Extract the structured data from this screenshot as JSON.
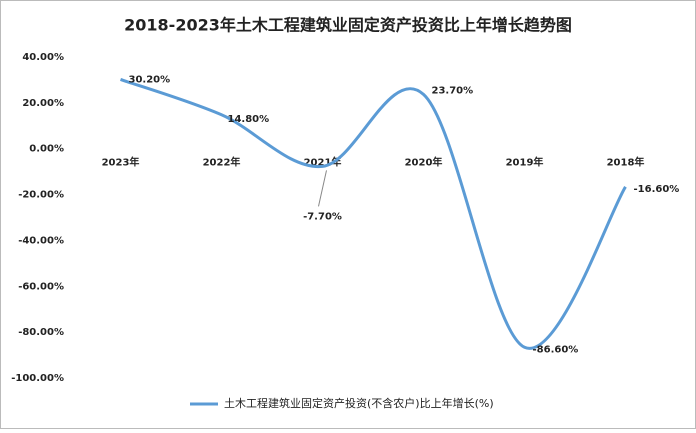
{
  "chart_data": {
    "type": "line",
    "title": "2018-2023年土木工程建筑业固定资产投资比上年增长趋势图",
    "categories": [
      "2023年",
      "2022年",
      "2021年",
      "2020年",
      "2019年",
      "2018年"
    ],
    "series": [
      {
        "name": "土木工程建筑业固定资产投资(不含农户)比上年增长(%)",
        "color": "#5b9bd5",
        "values": [
          30.2,
          14.8,
          -7.7,
          23.7,
          -86.6,
          -16.6
        ],
        "value_labels": [
          "30.20%",
          "14.80%",
          "-7.70%",
          "23.70%",
          "-86.60%",
          "-16.60%"
        ]
      }
    ],
    "ylim": [
      -100,
      40
    ],
    "yticks": [
      {
        "value": -100,
        "label": "-100.00%"
      },
      {
        "value": -80,
        "label": "-80.00%"
      },
      {
        "value": -60,
        "label": "-60.00%"
      },
      {
        "value": -40,
        "label": "-40.00%"
      },
      {
        "value": -20,
        "label": "-20.00%"
      },
      {
        "value": 0,
        "label": "0.00%"
      },
      {
        "value": 20,
        "label": "20.00%"
      },
      {
        "value": 40,
        "label": "40.00%"
      }
    ],
    "grid": false,
    "legend": "bottom"
  }
}
